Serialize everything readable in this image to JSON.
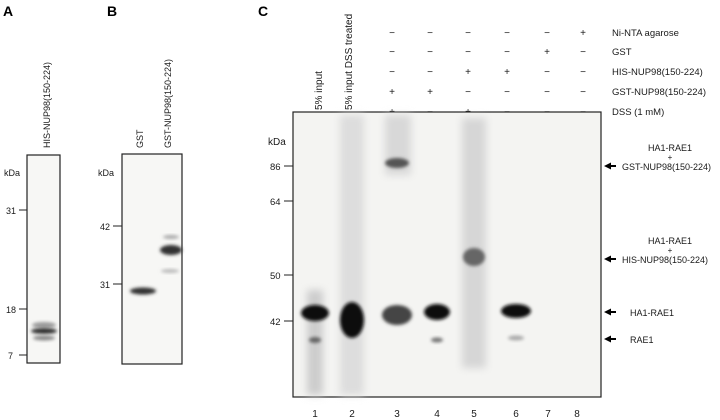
{
  "panels": {
    "a": {
      "letter": "A",
      "lane_label": "HIS-NUP98(150-224)",
      "unit": "kDa",
      "markers": [
        "31",
        "18",
        "7"
      ]
    },
    "b": {
      "letter": "B",
      "lane_labels": [
        "GST",
        "GST-NUP98(150-224)"
      ],
      "unit": "kDa",
      "markers": [
        "42",
        "31"
      ]
    },
    "c": {
      "letter": "C",
      "lane_titles": [
        "5% input",
        "5% input DSS treated"
      ],
      "unit": "kDa",
      "markers": [
        "86",
        "64",
        "50",
        "42"
      ],
      "conditions": [
        {
          "label": "Ni-NTA agarose",
          "signs": [
            "−",
            "−",
            "−",
            "−",
            "−",
            "+"
          ]
        },
        {
          "label": "GST",
          "signs": [
            "−",
            "−",
            "−",
            "−",
            "+",
            "−"
          ]
        },
        {
          "label": "HIS-NUP98(150-224)",
          "signs": [
            "−",
            "−",
            "+",
            "+",
            "−",
            "−"
          ]
        },
        {
          "label": "GST-NUP98(150-224)",
          "signs": [
            "+",
            "+",
            "−",
            "−",
            "−",
            "−"
          ]
        },
        {
          "label": "DSS (1 mM)",
          "signs": [
            "+",
            "−",
            "+",
            "−",
            "−",
            "−"
          ]
        }
      ],
      "lane_numbers": [
        "1",
        "2",
        "3",
        "4",
        "5",
        "6",
        "7",
        "8"
      ],
      "band_annotations": [
        {
          "line1": "HA1-RAE1",
          "plus": "+",
          "line2": "GST-NUP98(150-224)"
        },
        {
          "line1": "HA1-RAE1",
          "plus": "+",
          "line2": "HIS-NUP98(150-224)"
        },
        {
          "line1": "HA1-RAE1"
        },
        {
          "line1": "RAE1"
        }
      ]
    }
  }
}
